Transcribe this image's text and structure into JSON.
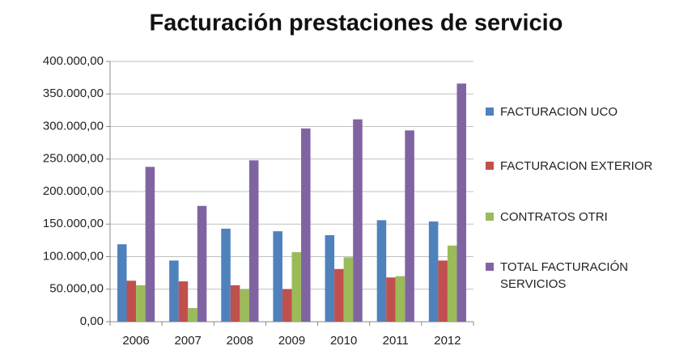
{
  "chart_data": {
    "type": "bar",
    "title": "Facturación prestaciones de servicio",
    "categories": [
      "2006",
      "2007",
      "2008",
      "2009",
      "2010",
      "2011",
      "2012"
    ],
    "series": [
      {
        "name": "FACTURACION UCO",
        "color": "#4f81bd",
        "values": [
          119000,
          94000,
          143000,
          139000,
          133000,
          156000,
          154000
        ]
      },
      {
        "name": "FACTURACION EXTERIOR",
        "color": "#c0504d",
        "values": [
          63000,
          62000,
          56000,
          50000,
          81000,
          68000,
          94000
        ]
      },
      {
        "name": "CONTRATOS OTRI",
        "color": "#9bbb59",
        "values": [
          56000,
          21000,
          50000,
          107000,
          99000,
          70000,
          117000
        ]
      },
      {
        "name": "TOTAL FACTURACIÓN SERVICIOS",
        "color": "#8064a2",
        "values": [
          238000,
          178000,
          248000,
          297000,
          311000,
          294000,
          366000
        ]
      }
    ],
    "ylim": [
      0,
      400000
    ],
    "yticks": [
      {
        "value": 0,
        "label": "0,00"
      },
      {
        "value": 50000,
        "label": "50.000,00"
      },
      {
        "value": 100000,
        "label": "100.000,00"
      },
      {
        "value": 150000,
        "label": "150.000,00"
      },
      {
        "value": 200000,
        "label": "200.000,00"
      },
      {
        "value": 250000,
        "label": "250.000,00"
      },
      {
        "value": 300000,
        "label": "300.000,00"
      },
      {
        "value": 350000,
        "label": "350.000,00"
      },
      {
        "value": 400000,
        "label": "400.000,00"
      }
    ],
    "grid": true,
    "legend": "right"
  }
}
